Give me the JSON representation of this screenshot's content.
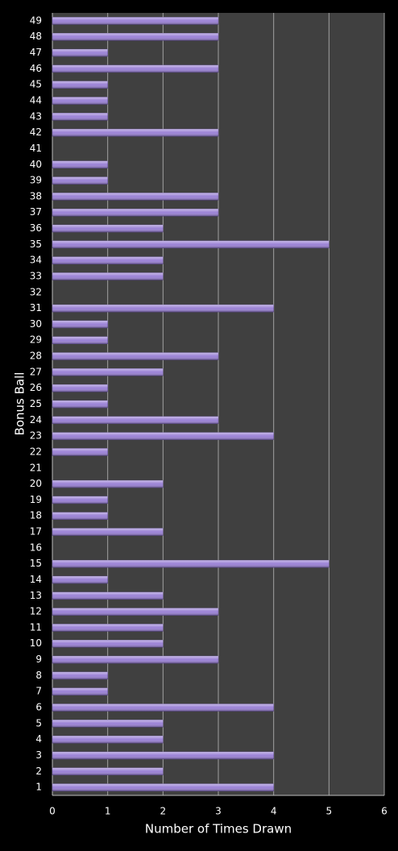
{
  "chart_data": {
    "type": "bar",
    "orientation": "horizontal",
    "x_label": "Number of Times Drawn",
    "y_label": "Bonus Ball",
    "categories": [
      "1",
      "2",
      "3",
      "4",
      "5",
      "6",
      "7",
      "8",
      "9",
      "10",
      "11",
      "12",
      "13",
      "14",
      "15",
      "16",
      "17",
      "18",
      "19",
      "20",
      "21",
      "22",
      "23",
      "24",
      "25",
      "26",
      "27",
      "28",
      "29",
      "30",
      "31",
      "32",
      "33",
      "34",
      "35",
      "36",
      "37",
      "38",
      "39",
      "40",
      "41",
      "42",
      "43",
      "44",
      "45",
      "46",
      "47",
      "48",
      "49"
    ],
    "values": [
      4,
      2,
      4,
      2,
      2,
      4,
      1,
      1,
      3,
      2,
      2,
      3,
      2,
      1,
      5,
      0,
      2,
      1,
      1,
      2,
      0,
      1,
      4,
      3,
      1,
      1,
      2,
      3,
      1,
      1,
      4,
      0,
      2,
      2,
      5,
      2,
      3,
      3,
      1,
      1,
      0,
      3,
      1,
      1,
      1,
      3,
      1,
      3,
      3
    ],
    "color": "#9b82d6",
    "xlim": [
      0,
      6
    ],
    "xticks": [
      0,
      1,
      2,
      3,
      4,
      5,
      6
    ],
    "grid": true
  }
}
